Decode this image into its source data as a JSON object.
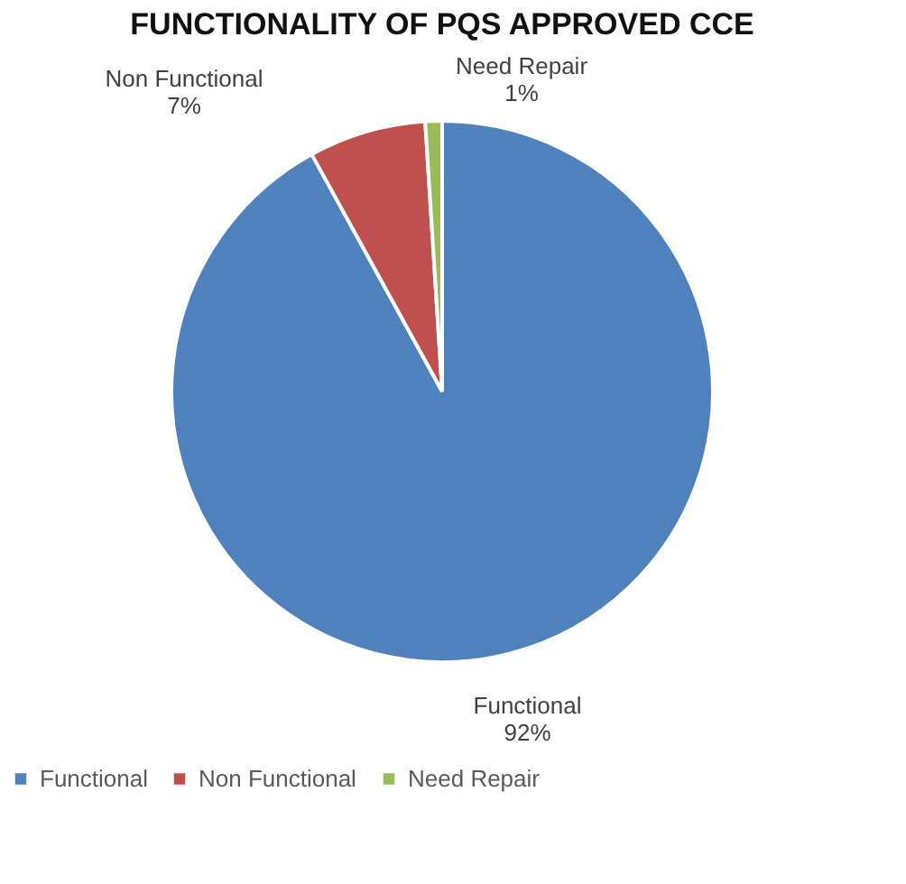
{
  "chart_data": {
    "type": "pie",
    "title": "FUNCTIONALITY OF PQS APPROVED CCE",
    "categories": [
      "Functional",
      "Non Functional",
      "Need Repair"
    ],
    "values": [
      92,
      7,
      1
    ],
    "colors": [
      "#4f81bd",
      "#c0504d",
      "#9bbb59"
    ],
    "value_labels": [
      "92%",
      "7%",
      "1%"
    ],
    "legend": "bottom"
  }
}
